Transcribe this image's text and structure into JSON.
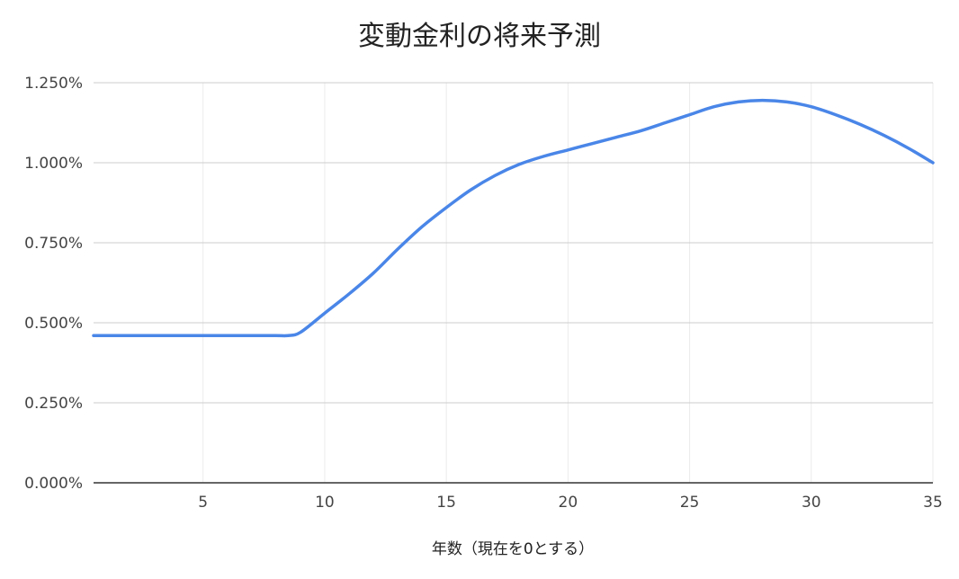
{
  "chart_data": {
    "type": "line",
    "title": "変動金利の将来予測",
    "xlabel": "年数（現在を0とする）",
    "ylabel": "",
    "xlim": [
      0.5,
      35
    ],
    "ylim": [
      0,
      1.25
    ],
    "x_ticks": [
      5,
      10,
      15,
      20,
      25,
      30,
      35
    ],
    "x_tick_labels": [
      "5",
      "10",
      "15",
      "20",
      "25",
      "30",
      "35"
    ],
    "y_ticks": [
      0,
      0.25,
      0.5,
      0.75,
      1.0,
      1.25
    ],
    "y_tick_labels": [
      "0.000%",
      "0.250%",
      "0.500%",
      "0.750%",
      "1.000%",
      "1.250%"
    ],
    "grid": true,
    "series": [
      {
        "color": "#4a86e8",
        "x": [
          0.5,
          1,
          2,
          3,
          4,
          5,
          6,
          7,
          8,
          8.5,
          9,
          10,
          11,
          12,
          13,
          14,
          15,
          16,
          17,
          18,
          19,
          20,
          21,
          22,
          23,
          24,
          25,
          26,
          27,
          28,
          29,
          30,
          31,
          32,
          33,
          34,
          35
        ],
        "y": [
          0.46,
          0.46,
          0.46,
          0.46,
          0.46,
          0.46,
          0.46,
          0.46,
          0.46,
          0.46,
          0.47,
          0.53,
          0.59,
          0.655,
          0.73,
          0.8,
          0.86,
          0.915,
          0.96,
          0.995,
          1.02,
          1.04,
          1.06,
          1.08,
          1.1,
          1.125,
          1.15,
          1.175,
          1.19,
          1.195,
          1.19,
          1.175,
          1.15,
          1.12,
          1.085,
          1.045,
          1.0
        ]
      }
    ]
  }
}
